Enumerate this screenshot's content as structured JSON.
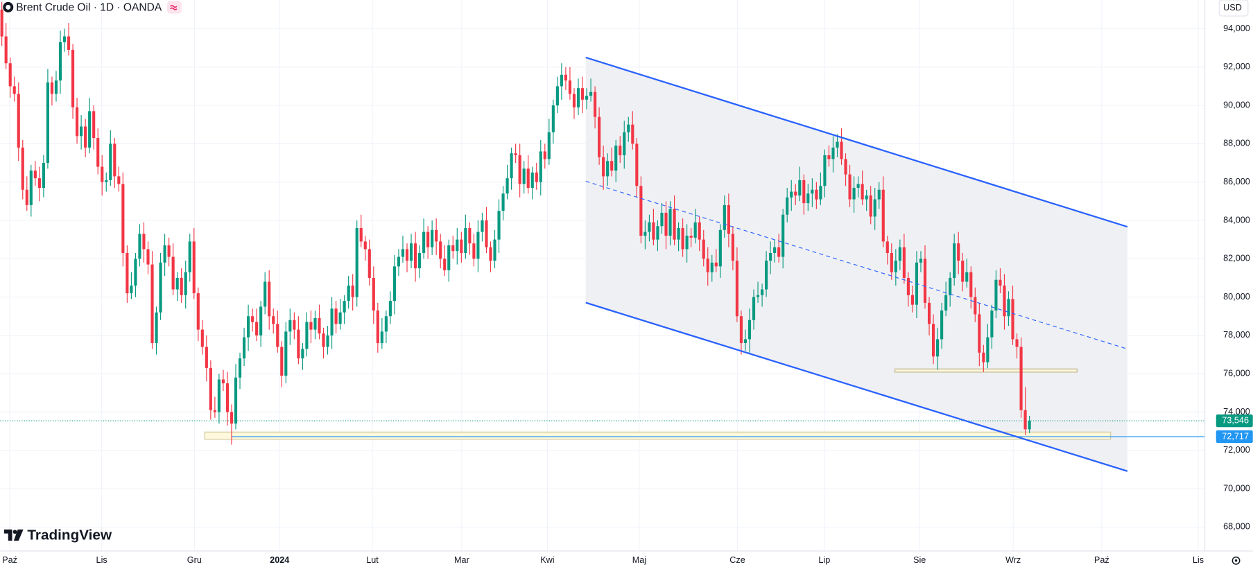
{
  "chart_data": {
    "type": "candlestick",
    "title": "Brent Crude Oil · 1D · OANDA",
    "currency": "USD",
    "brand": "TradingView",
    "up_color": "#089981",
    "down_color": "#f23645",
    "grid": true,
    "xlim": [
      -0.4,
      288
    ],
    "xticks": [
      {
        "value": 1.9,
        "label": "Paź"
      },
      {
        "value": 23.9,
        "label": "Lis"
      },
      {
        "value": 46.1,
        "label": "Gru"
      },
      {
        "value": 66.5,
        "label": "2024"
      },
      {
        "value": 88.7,
        "label": "Lut"
      },
      {
        "value": 110.1,
        "label": "Mar"
      },
      {
        "value": 130.6,
        "label": "Kwi"
      },
      {
        "value": 152.6,
        "label": "Maj"
      },
      {
        "value": 176.1,
        "label": "Cze"
      },
      {
        "value": 196.9,
        "label": "Lip"
      },
      {
        "value": 219.7,
        "label": "Sie"
      },
      {
        "value": 242.1,
        "label": "Wrz"
      },
      {
        "value": 263.3,
        "label": "Paź"
      },
      {
        "value": 286.4,
        "label": "Lis"
      }
    ],
    "ylim": [
      66.75,
      95.5
    ],
    "yticks": [
      {
        "value": 68,
        "label": "68,000"
      },
      {
        "value": 70,
        "label": "70,000"
      },
      {
        "value": 72,
        "label": "72,000"
      },
      {
        "value": 74,
        "label": "74,000"
      },
      {
        "value": 76,
        "label": "76,000"
      },
      {
        "value": 78,
        "label": "78,000"
      },
      {
        "value": 80,
        "label": "80,000"
      },
      {
        "value": 82,
        "label": "82,000"
      },
      {
        "value": 84,
        "label": "84,000"
      },
      {
        "value": 86,
        "label": "86,000"
      },
      {
        "value": 88,
        "label": "88,000"
      },
      {
        "value": 90,
        "label": "90,000"
      },
      {
        "value": 92,
        "label": "92,000"
      },
      {
        "value": 94,
        "label": "94,000"
      }
    ],
    "last_price": {
      "value": 73.546,
      "label": "73,546"
    },
    "marked_level": {
      "value": 72.717,
      "label": "72,717"
    },
    "open": [
      95.0,
      93.6,
      92.2,
      91.0,
      90.6,
      87.8,
      85.6,
      84.8,
      86.6,
      86.2,
      85.7,
      87.0,
      91.2,
      90.6,
      91.3,
      93.3,
      93.6,
      92.9,
      89.9,
      88.4,
      88.9,
      87.8,
      89.7,
      88.3,
      86.8,
      86.0,
      86.1,
      88.0,
      86.3,
      85.9,
      82.3,
      80.2,
      80.6,
      82.0,
      83.3,
      82.5,
      81.7,
      77.6,
      79.2,
      81.8,
      82.7,
      82.1,
      80.4,
      81.0,
      80.1,
      81.3,
      82.9,
      80.2,
      78.3,
      77.4,
      76.3,
      74.1,
      74.0,
      75.7,
      75.5,
      74.0,
      73.4,
      75.8,
      76.8,
      77.9,
      79.0,
      78.7,
      78.0,
      79.5,
      80.8,
      79.0,
      78.6,
      77.4,
      75.9,
      78.2,
      78.8,
      78.3,
      76.8,
      77.3,
      78.7,
      78.3,
      78.9,
      78.1,
      77.4,
      78.0,
      79.4,
      78.6,
      79.2,
      79.8,
      80.6,
      80.0,
      83.6,
      82.9,
      82.5,
      81.0,
      79.3,
      77.6,
      78.2,
      79.0,
      79.8,
      81.6,
      82.1,
      82.5,
      81.9,
      82.8,
      81.5,
      82.3,
      83.4,
      82.6,
      83.5,
      82.9,
      82.0,
      81.4,
      82.7,
      82.4,
      83.0,
      82.3,
      83.6,
      82.8,
      82.0,
      83.4,
      84.0,
      82.6,
      81.9,
      83.0,
      84.5,
      85.4,
      86.2,
      87.5,
      87.4,
      85.9,
      86.7,
      85.7,
      86.5,
      86.0,
      87.6,
      87.2,
      88.6,
      90.0,
      91.0,
      91.6,
      91.3,
      90.6,
      89.9,
      90.9,
      90.3,
      90.5,
      90.7,
      89.4,
      87.3,
      86.3,
      87.1,
      86.6,
      87.9,
      87.4,
      88.6,
      89.0,
      88.0,
      85.8,
      83.2,
      83.4,
      83.9,
      83.0,
      83.7,
      84.4,
      83.2,
      84.6,
      83.0,
      83.6,
      82.5,
      83.2,
      83.1,
      83.9,
      83.0,
      82.0,
      81.3,
      81.8,
      81.6,
      83.5,
      84.8,
      83.3,
      81.9,
      79.0,
      77.6,
      77.8,
      78.8,
      80.0,
      80.1,
      80.4,
      81.9,
      82.3,
      82.6,
      82.1,
      84.3,
      85.2,
      85.5,
      85.3,
      86.1,
      84.9,
      85.4,
      85.6,
      85.1,
      85.8,
      87.4,
      87.2,
      87.8,
      88.1,
      87.2,
      86.4,
      85.1,
      85.7,
      85.9,
      85.1,
      85.3,
      84.2,
      85.1,
      85.6,
      82.9,
      82.3,
      81.3,
      81.9,
      82.6,
      81.0,
      80.1,
      79.6,
      81.8,
      82.0,
      79.7,
      78.6,
      76.9,
      77.8,
      79.3,
      80.1,
      81.0,
      82.8,
      81.9,
      80.8,
      81.3,
      80.0,
      79.1,
      77.1,
      76.6,
      77.9,
      79.3,
      80.9,
      80.6,
      79.0,
      79.9,
      77.8,
      77.4,
      74.1,
      73.1
    ],
    "high": [
      95.4,
      94.3,
      92.5,
      91.5,
      91.2,
      88.2,
      86.3,
      86.9,
      87.1,
      86.8,
      87.4,
      91.9,
      91.5,
      91.8,
      93.9,
      94.0,
      94.3,
      93.2,
      90.4,
      89.5,
      89.3,
      90.4,
      90.0,
      88.8,
      87.4,
      86.5,
      88.7,
      88.3,
      86.8,
      86.5,
      82.7,
      81.3,
      82.3,
      83.8,
      83.9,
      82.9,
      82.4,
      79.5,
      82.3,
      83.3,
      83.1,
      82.8,
      81.3,
      81.5,
      81.9,
      83.3,
      83.6,
      80.5,
      78.8,
      78.0,
      76.7,
      74.8,
      76.0,
      76.2,
      76.1,
      74.4,
      76.5,
      77.1,
      78.4,
      79.6,
      79.4,
      79.4,
      79.8,
      81.3,
      81.4,
      79.4,
      79.3,
      77.7,
      78.7,
      79.4,
      79.2,
      79.0,
      77.6,
      79.2,
      79.3,
      79.3,
      79.6,
      78.4,
      78.5,
      80.0,
      79.8,
      79.9,
      80.1,
      81.1,
      81.2,
      84.0,
      84.3,
      83.2,
      83.0,
      81.6,
      79.7,
      78.9,
      79.3,
      80.3,
      82.2,
      82.5,
      83.2,
      82.8,
      83.3,
      83.4,
      82.7,
      84.1,
      83.7,
      84.0,
      84.1,
      83.3,
      82.7,
      83.0,
      83.2,
      83.6,
      83.4,
      84.3,
      83.9,
      83.3,
      84.0,
      84.4,
      84.7,
      82.9,
      83.5,
      85.1,
      85.8,
      86.9,
      87.8,
      88.0,
      88.0,
      87.1,
      87.4,
      86.8,
      87.0,
      88.2,
      88.0,
      89.3,
      90.3,
      91.5,
      92.2,
      92.0,
      92.0,
      90.9,
      91.4,
      91.5,
      90.9,
      91.4,
      91.0,
      89.9,
      87.9,
      87.5,
      87.8,
      88.2,
      88.4,
      89.2,
      89.4,
      89.7,
      88.3,
      86.3,
      84.0,
      84.3,
      84.6,
      84.0,
      84.9,
      85.0,
      85.0,
      85.3,
      83.9,
      84.1,
      83.8,
      83.6,
      84.6,
      84.2,
      83.5,
      82.6,
      82.2,
      82.5,
      83.8,
      85.3,
      85.4,
      83.7,
      82.6,
      79.3,
      78.3,
      79.4,
      80.4,
      80.8,
      80.7,
      82.4,
      82.9,
      83.0,
      83.3,
      84.6,
      85.7,
      86.1,
      85.9,
      86.8,
      86.4,
      85.9,
      86.2,
      86.0,
      86.5,
      87.7,
      87.9,
      88.4,
      88.5,
      88.8,
      87.5,
      86.9,
      86.3,
      86.3,
      86.6,
      85.6,
      85.8,
      85.7,
      86.0,
      86.3,
      83.2,
      82.8,
      82.5,
      83.0,
      83.3,
      81.3,
      80.6,
      82.4,
      82.4,
      82.7,
      80.0,
      79.1,
      78.4,
      79.7,
      80.8,
      81.3,
      83.3,
      83.4,
      82.3,
      82.0,
      81.6,
      80.5,
      79.7,
      77.5,
      78.6,
      79.6,
      81.4,
      81.5,
      81.2,
      80.3,
      80.6,
      78.1,
      77.9,
      75.3,
      73.8
    ],
    "low": [
      93.1,
      91.9,
      90.4,
      90.2,
      87.1,
      85.1,
      84.5,
      84.2,
      85.8,
      85.0,
      85.2,
      86.7,
      90.0,
      90.2,
      90.6,
      92.8,
      92.6,
      89.3,
      88.0,
      87.7,
      87.3,
      87.5,
      87.7,
      86.4,
      85.3,
      85.5,
      85.8,
      85.7,
      85.5,
      81.6,
      79.7,
      79.9,
      80.0,
      81.6,
      81.8,
      81.2,
      77.3,
      77.0,
      78.8,
      81.1,
      81.6,
      80.1,
      79.8,
      79.7,
      79.4,
      80.8,
      79.9,
      77.7,
      77.0,
      75.6,
      73.6,
      73.7,
      73.4,
      75.1,
      73.3,
      72.3,
      73.1,
      75.2,
      76.4,
      77.2,
      78.2,
      77.7,
      77.4,
      79.1,
      78.3,
      78.1,
      77.1,
      75.3,
      75.5,
      77.5,
      77.8,
      76.5,
      76.2,
      76.9,
      77.6,
      77.8,
      77.8,
      76.8,
      77.0,
      77.3,
      78.1,
      78.3,
      78.6,
      79.4,
      79.3,
      79.5,
      82.6,
      81.9,
      80.6,
      78.6,
      77.1,
      77.3,
      77.6,
      78.6,
      79.1,
      81.1,
      81.8,
      81.3,
      81.5,
      80.8,
      81.0,
      82.0,
      82.0,
      82.2,
      82.2,
      81.5,
      81.1,
      80.8,
      82.0,
      81.7,
      81.8,
      82.0,
      82.2,
      81.6,
      81.3,
      82.9,
      82.3,
      81.3,
      81.5,
      82.3,
      84.0,
      85.1,
      85.6,
      87.0,
      85.2,
      85.4,
      85.4,
      85.1,
      85.6,
      85.3,
      86.7,
      86.9,
      88.0,
      89.6,
      90.3,
      90.8,
      90.3,
      89.3,
      89.5,
      89.6,
      89.8,
      90.2,
      88.8,
      86.9,
      85.6,
      85.8,
      86.3,
      86.0,
      87.0,
      86.7,
      88.1,
      87.7,
      85.2,
      82.8,
      82.5,
      82.9,
      82.7,
      82.4,
      83.3,
      82.5,
      82.7,
      82.7,
      82.4,
      82.1,
      81.8,
      82.6,
      82.8,
      82.4,
      81.6,
      80.6,
      80.8,
      81.3,
      81.0,
      83.1,
      82.6,
      81.4,
      78.7,
      77.0,
      77.2,
      77.1,
      78.3,
      79.7,
      79.5,
      80.0,
      81.2,
      81.8,
      81.8,
      81.5,
      83.9,
      84.5,
      84.8,
      85.0,
      84.3,
      84.5,
      84.7,
      84.6,
      84.8,
      85.2,
      86.8,
      86.5,
      87.3,
      86.9,
      85.8,
      84.7,
      84.4,
      85.2,
      84.8,
      84.5,
      83.8,
      83.5,
      84.6,
      82.6,
      81.7,
      80.9,
      80.6,
      81.4,
      80.7,
      79.5,
      79.2,
      78.9,
      81.3,
      79.4,
      78.0,
      76.5,
      76.2,
      77.3,
      79.0,
      79.5,
      80.6,
      81.2,
      80.3,
      80.5,
      79.4,
      78.7,
      76.4,
      76.1,
      76.3,
      77.3,
      78.9,
      80.2,
      78.3,
      78.5,
      77.5,
      76.8,
      73.7,
      72.8,
      72.9
    ],
    "close": [
      93.6,
      92.2,
      91.0,
      90.6,
      87.8,
      85.6,
      84.8,
      86.6,
      86.2,
      85.7,
      87.0,
      91.2,
      90.6,
      91.3,
      93.3,
      93.6,
      92.9,
      89.9,
      88.4,
      88.9,
      87.8,
      89.7,
      88.3,
      86.8,
      86.0,
      86.1,
      88.0,
      86.3,
      85.9,
      82.3,
      80.2,
      80.6,
      82.0,
      83.3,
      82.5,
      81.7,
      77.6,
      79.2,
      81.8,
      82.7,
      82.1,
      80.4,
      81.0,
      80.1,
      81.3,
      82.9,
      80.2,
      78.3,
      77.4,
      76.3,
      74.1,
      74.0,
      75.7,
      75.5,
      74.0,
      73.4,
      75.8,
      76.8,
      77.9,
      79.0,
      78.7,
      78.0,
      79.5,
      80.8,
      79.0,
      78.6,
      77.4,
      75.9,
      78.2,
      78.8,
      78.3,
      76.8,
      77.3,
      78.7,
      78.3,
      78.9,
      78.1,
      77.4,
      78.0,
      79.4,
      78.6,
      79.2,
      79.8,
      80.6,
      80.0,
      83.6,
      82.9,
      82.5,
      81.0,
      79.3,
      77.6,
      78.2,
      79.0,
      79.8,
      81.6,
      82.1,
      82.5,
      81.9,
      82.8,
      81.5,
      82.3,
      83.4,
      82.6,
      83.5,
      82.9,
      82.0,
      81.4,
      82.7,
      82.4,
      83.0,
      82.3,
      83.6,
      82.8,
      82.0,
      83.4,
      84.0,
      82.6,
      81.9,
      83.0,
      84.5,
      85.4,
      86.2,
      87.5,
      87.4,
      85.9,
      86.7,
      85.7,
      86.5,
      86.0,
      87.6,
      87.2,
      88.6,
      90.0,
      91.0,
      91.6,
      91.3,
      90.6,
      89.9,
      90.9,
      90.3,
      90.5,
      90.7,
      89.4,
      87.3,
      86.3,
      87.1,
      86.6,
      87.9,
      87.4,
      88.6,
      89.0,
      88.0,
      85.8,
      83.2,
      83.4,
      83.9,
      83.0,
      83.7,
      84.4,
      83.2,
      84.6,
      83.0,
      83.6,
      82.5,
      83.2,
      83.1,
      83.9,
      83.0,
      82.0,
      81.3,
      81.8,
      81.6,
      83.5,
      84.8,
      83.3,
      81.9,
      79.0,
      77.6,
      77.8,
      78.8,
      80.0,
      80.1,
      80.4,
      81.9,
      82.3,
      82.6,
      82.1,
      84.3,
      85.2,
      85.5,
      85.3,
      86.1,
      84.9,
      85.4,
      85.6,
      85.1,
      85.8,
      87.4,
      87.2,
      87.8,
      88.1,
      87.2,
      86.4,
      85.1,
      85.7,
      85.9,
      85.1,
      85.3,
      84.2,
      85.1,
      85.6,
      82.9,
      82.3,
      81.3,
      81.9,
      82.6,
      81.0,
      80.1,
      79.6,
      81.8,
      82.0,
      79.7,
      78.6,
      76.9,
      77.8,
      79.3,
      80.1,
      81.0,
      82.8,
      81.9,
      80.8,
      81.3,
      80.0,
      79.1,
      77.1,
      76.6,
      77.9,
      79.3,
      80.9,
      80.6,
      79.0,
      79.9,
      77.8,
      77.4,
      74.1,
      73.1,
      73.546
    ]
  }
}
